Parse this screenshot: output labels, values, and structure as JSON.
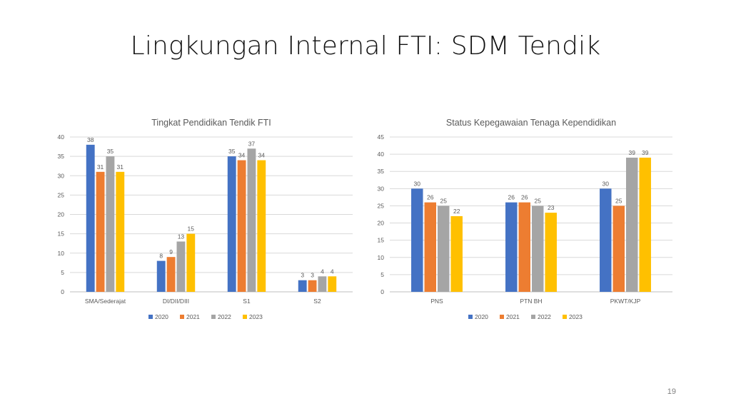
{
  "slide": {
    "title": "Lingkungan Internal FTI: SDM Tendik",
    "page_number": "19"
  },
  "colors": {
    "2020": "#4472C4",
    "2021": "#ED7D31",
    "2022": "#A5A5A5",
    "2023": "#FFC000",
    "gridline": "#d9d9d9",
    "text": "#595959"
  },
  "chart_data": [
    {
      "type": "bar",
      "title": "Tingkat Pendidikan Tendik FTI",
      "xlabel": "",
      "ylabel": "",
      "ylim": [
        0,
        40
      ],
      "yticks": [
        0,
        5,
        10,
        15,
        20,
        25,
        30,
        35,
        40
      ],
      "grid": true,
      "legend_position": "bottom",
      "categories": [
        "SMA/Sederajat",
        "DI/DII/DIII",
        "S1",
        "S2"
      ],
      "series": [
        {
          "name": "2020",
          "values": [
            38,
            8,
            35,
            3
          ]
        },
        {
          "name": "2021",
          "values": [
            31,
            9,
            34,
            3
          ]
        },
        {
          "name": "2022",
          "values": [
            35,
            13,
            37,
            4
          ]
        },
        {
          "name": "2023",
          "values": [
            31,
            15,
            34,
            4
          ]
        }
      ]
    },
    {
      "type": "bar",
      "title": "Status Kepegawaian Tenaga Kependidikan",
      "xlabel": "",
      "ylabel": "",
      "ylim": [
        0,
        45
      ],
      "yticks": [
        0,
        5,
        10,
        15,
        20,
        25,
        30,
        35,
        40,
        45
      ],
      "grid": true,
      "legend_position": "bottom",
      "categories": [
        "PNS",
        "PTN BH",
        "PKWT/KJP"
      ],
      "series": [
        {
          "name": "2020",
          "values": [
            30,
            26,
            30
          ]
        },
        {
          "name": "2021",
          "values": [
            26,
            26,
            25
          ]
        },
        {
          "name": "2022",
          "values": [
            25,
            25,
            39
          ]
        },
        {
          "name": "2023",
          "values": [
            22,
            23,
            39
          ]
        }
      ]
    }
  ]
}
